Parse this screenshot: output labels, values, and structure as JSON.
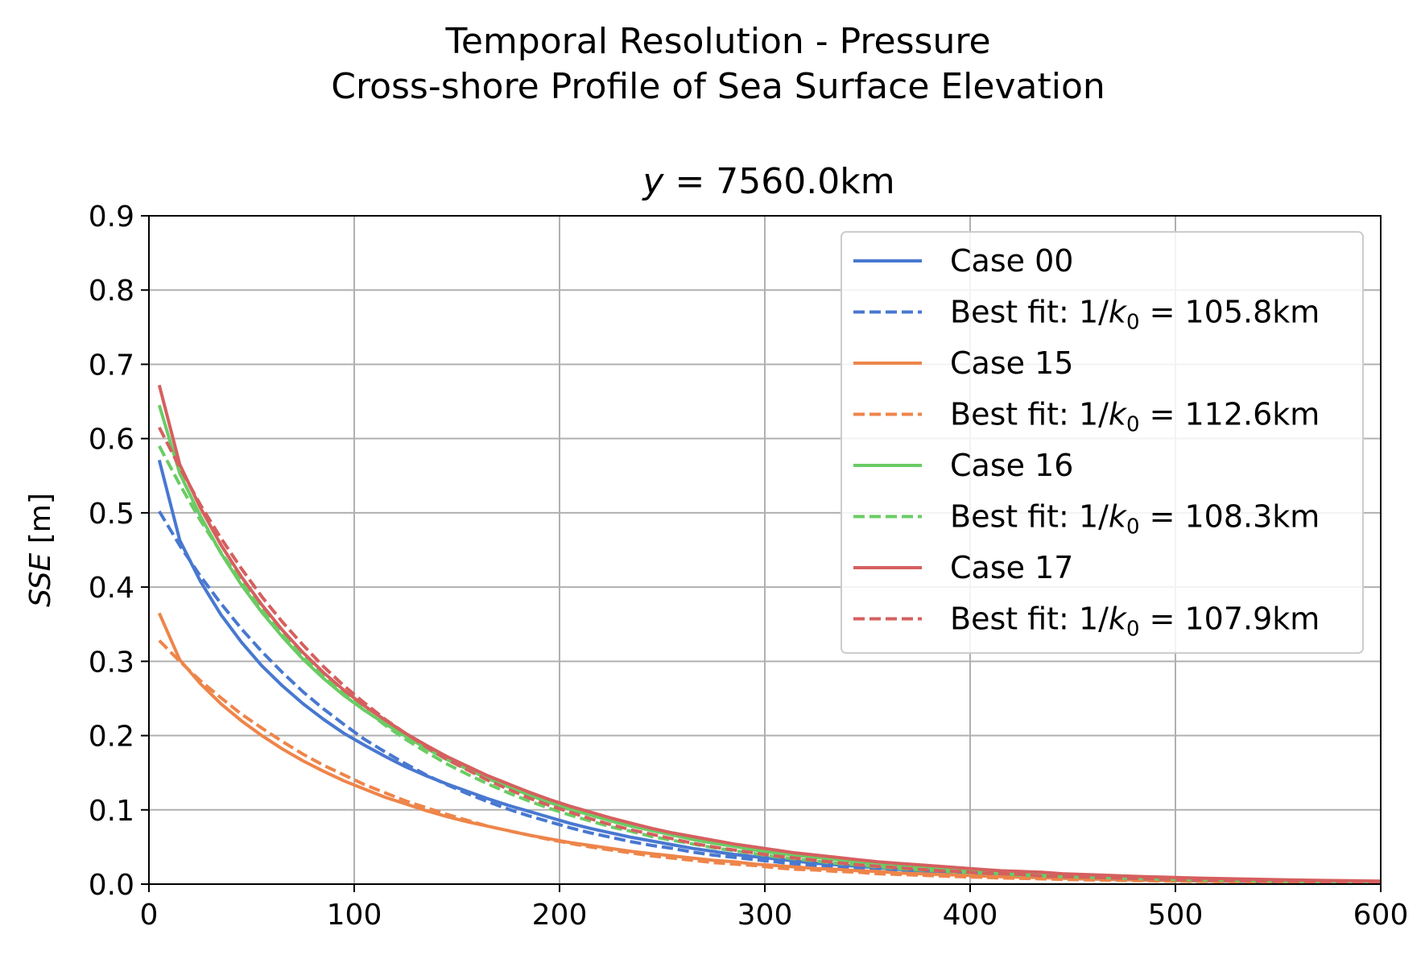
{
  "figure": {
    "suptitle_line1": "Temporal Resolution - Pressure",
    "suptitle_line2": "Cross-shore Profile of Sea Surface Elevation"
  },
  "chart_data": {
    "type": "line",
    "title": "y = 7560.0km",
    "title_parts": {
      "var": "y",
      "rest": " = 7560.0km"
    },
    "ylabel": "SSE [m]",
    "ylabel_parts": {
      "var": "SSE",
      "rest": " [m]"
    },
    "xlabel": "",
    "xlim": [
      0,
      600
    ],
    "ylim": [
      0,
      0.9
    ],
    "xticks": [
      "0",
      "100",
      "200",
      "300",
      "400",
      "500",
      "600"
    ],
    "yticks": [
      "0.0",
      "0.1",
      "0.2",
      "0.3",
      "0.4",
      "0.5",
      "0.6",
      "0.7",
      "0.8",
      "0.9"
    ],
    "grid": true,
    "legend_position": "top-right",
    "x": [
      5,
      15,
      25,
      35,
      45,
      55,
      65,
      75,
      85,
      95,
      105,
      115,
      125,
      135,
      145,
      155,
      165,
      175,
      185,
      195,
      205,
      215,
      225,
      235,
      245,
      255,
      265,
      275,
      285,
      295,
      305,
      315,
      325,
      335,
      345,
      355,
      365,
      375,
      385,
      395,
      405,
      415,
      425,
      435,
      445,
      455,
      465,
      475,
      485,
      495,
      505,
      515,
      525,
      535,
      545,
      555,
      565,
      575,
      585,
      595,
      600
    ],
    "series": [
      {
        "name": "Case 00",
        "style": "solid",
        "color": "#4878d0",
        "values": [
          0.571,
          0.463,
          0.408,
          0.363,
          0.326,
          0.294,
          0.267,
          0.243,
          0.222,
          0.203,
          0.187,
          0.172,
          0.158,
          0.146,
          0.135,
          0.125,
          0.115,
          0.106,
          0.098,
          0.09,
          0.082,
          0.075,
          0.069,
          0.063,
          0.058,
          0.053,
          0.048,
          0.044,
          0.04,
          0.037,
          0.034,
          0.031,
          0.028,
          0.026,
          0.024,
          0.022,
          0.02,
          0.018,
          0.017,
          0.015,
          0.014,
          0.013,
          0.012,
          0.011,
          0.01,
          0.009,
          0.008,
          0.0075,
          0.007,
          0.0065,
          0.006,
          0.0055,
          0.005,
          0.0046,
          0.0043,
          0.004,
          0.0037,
          0.0035,
          0.0033,
          0.0031,
          0.003
        ]
      },
      {
        "name": "Best fit: 1/k0 = 105.8km",
        "label_parts": {
          "pre": "Best fit: 1/",
          "k": "k",
          "sub": "0",
          "post": " = 105.8km"
        },
        "style": "dashed",
        "color": "#4878d0",
        "values": [
          0.502,
          0.456,
          0.415,
          0.378,
          0.344,
          0.313,
          0.285,
          0.259,
          0.236,
          0.215,
          0.195,
          0.178,
          0.162,
          0.147,
          0.134,
          0.122,
          0.111,
          0.101,
          0.092,
          0.084,
          0.076,
          0.069,
          0.063,
          0.057,
          0.052,
          0.048,
          0.043,
          0.039,
          0.036,
          0.033,
          0.03,
          0.027,
          0.025,
          0.022,
          0.02,
          0.019,
          0.017,
          0.015,
          0.014,
          0.013,
          0.012,
          0.011,
          0.01,
          0.009,
          0.008,
          0.007,
          0.0066,
          0.006,
          0.0055,
          0.005,
          0.0045,
          0.0041,
          0.0038,
          0.0034,
          0.0031,
          0.0028,
          0.0026,
          0.0024,
          0.0021,
          0.002,
          0.0019
        ]
      },
      {
        "name": "Case 15",
        "style": "solid",
        "color": "#ee854a",
        "values": [
          0.365,
          0.302,
          0.27,
          0.243,
          0.22,
          0.2,
          0.182,
          0.166,
          0.152,
          0.139,
          0.128,
          0.117,
          0.108,
          0.099,
          0.091,
          0.084,
          0.078,
          0.072,
          0.066,
          0.061,
          0.056,
          0.052,
          0.048,
          0.044,
          0.041,
          0.038,
          0.035,
          0.032,
          0.03,
          0.027,
          0.025,
          0.023,
          0.021,
          0.02,
          0.018,
          0.017,
          0.015,
          0.014,
          0.013,
          0.012,
          0.011,
          0.01,
          0.0093,
          0.0086,
          0.008,
          0.0074,
          0.0068,
          0.0063,
          0.0058,
          0.0054,
          0.005,
          0.0046,
          0.0043,
          0.004,
          0.0037,
          0.0034,
          0.0031,
          0.0029,
          0.0027,
          0.0025,
          0.0024
        ]
      },
      {
        "name": "Best fit: 1/k0 = 112.6km",
        "label_parts": {
          "pre": "Best fit: 1/",
          "k": "k",
          "sub": "0",
          "post": " = 112.6km"
        },
        "style": "dashed",
        "color": "#ee854a",
        "values": [
          0.328,
          0.3,
          0.274,
          0.251,
          0.229,
          0.21,
          0.192,
          0.175,
          0.16,
          0.147,
          0.134,
          0.123,
          0.112,
          0.103,
          0.094,
          0.086,
          0.078,
          0.072,
          0.066,
          0.06,
          0.055,
          0.05,
          0.046,
          0.042,
          0.038,
          0.035,
          0.032,
          0.029,
          0.027,
          0.025,
          0.022,
          0.02,
          0.019,
          0.017,
          0.016,
          0.014,
          0.013,
          0.012,
          0.011,
          0.01,
          0.0092,
          0.0084,
          0.0077,
          0.007,
          0.0064,
          0.0059,
          0.0054,
          0.0049,
          0.0045,
          0.0041,
          0.0038,
          0.0035,
          0.0032,
          0.0029,
          0.0026,
          0.0024,
          0.0022,
          0.002,
          0.0018,
          0.0017,
          0.0016
        ]
      },
      {
        "name": "Case 16",
        "style": "solid",
        "color": "#6acc64",
        "values": [
          0.645,
          0.553,
          0.496,
          0.446,
          0.403,
          0.366,
          0.333,
          0.303,
          0.277,
          0.254,
          0.234,
          0.216,
          0.199,
          0.183,
          0.168,
          0.155,
          0.142,
          0.131,
          0.12,
          0.11,
          0.101,
          0.093,
          0.085,
          0.078,
          0.072,
          0.066,
          0.06,
          0.055,
          0.051,
          0.046,
          0.042,
          0.039,
          0.036,
          0.033,
          0.03,
          0.027,
          0.025,
          0.023,
          0.021,
          0.019,
          0.018,
          0.016,
          0.015,
          0.014,
          0.012,
          0.011,
          0.01,
          0.0095,
          0.0087,
          0.008,
          0.0073,
          0.0067,
          0.0061,
          0.0056,
          0.0051,
          0.0047,
          0.0043,
          0.004,
          0.0036,
          0.0033,
          0.0032
        ]
      },
      {
        "name": "Best fit: 1/k0 = 108.3km",
        "label_parts": {
          "pre": "Best fit: 1/",
          "k": "k",
          "sub": "0",
          "post": " = 108.3km"
        },
        "style": "dashed",
        "color": "#6acc64",
        "values": [
          0.59,
          0.538,
          0.49,
          0.447,
          0.408,
          0.372,
          0.339,
          0.309,
          0.282,
          0.257,
          0.235,
          0.214,
          0.195,
          0.178,
          0.162,
          0.148,
          0.135,
          0.123,
          0.112,
          0.102,
          0.093,
          0.085,
          0.077,
          0.071,
          0.064,
          0.059,
          0.054,
          0.049,
          0.045,
          0.041,
          0.037,
          0.034,
          0.031,
          0.028,
          0.026,
          0.023,
          0.021,
          0.019,
          0.018,
          0.016,
          0.015,
          0.014,
          0.012,
          0.011,
          0.01,
          0.0094,
          0.0086,
          0.0078,
          0.0071,
          0.0065,
          0.0059,
          0.0054,
          0.0049,
          0.0045,
          0.0041,
          0.0037,
          0.0034,
          0.0031,
          0.0028,
          0.0026,
          0.0025
        ]
      },
      {
        "name": "Case 17",
        "style": "solid",
        "color": "#d65f5f",
        "values": [
          0.672,
          0.565,
          0.507,
          0.457,
          0.414,
          0.376,
          0.342,
          0.312,
          0.285,
          0.261,
          0.24,
          0.221,
          0.203,
          0.187,
          0.172,
          0.159,
          0.146,
          0.135,
          0.124,
          0.114,
          0.105,
          0.097,
          0.089,
          0.082,
          0.075,
          0.069,
          0.064,
          0.059,
          0.054,
          0.05,
          0.046,
          0.042,
          0.039,
          0.036,
          0.033,
          0.03,
          0.028,
          0.026,
          0.024,
          0.022,
          0.02,
          0.018,
          0.017,
          0.016,
          0.014,
          0.013,
          0.012,
          0.011,
          0.01,
          0.0093,
          0.0086,
          0.0079,
          0.0073,
          0.0067,
          0.0062,
          0.0057,
          0.0053,
          0.0049,
          0.0045,
          0.0042,
          0.004
        ]
      },
      {
        "name": "Best fit: 1/k0 = 107.9km",
        "label_parts": {
          "pre": "Best fit: 1/",
          "k": "k",
          "sub": "0",
          "post": " = 107.9km"
        },
        "style": "dashed",
        "color": "#d65f5f",
        "values": [
          0.615,
          0.561,
          0.511,
          0.466,
          0.425,
          0.387,
          0.353,
          0.322,
          0.293,
          0.267,
          0.244,
          0.222,
          0.203,
          0.185,
          0.168,
          0.154,
          0.14,
          0.128,
          0.116,
          0.106,
          0.097,
          0.088,
          0.08,
          0.073,
          0.067,
          0.061,
          0.055,
          0.05,
          0.046,
          0.042,
          0.038,
          0.035,
          0.032,
          0.029,
          0.026,
          0.024,
          0.022,
          0.02,
          0.018,
          0.017,
          0.015,
          0.014,
          0.013,
          0.011,
          0.01,
          0.0095,
          0.0087,
          0.0079,
          0.0072,
          0.0066,
          0.006,
          0.0055,
          0.005,
          0.0045,
          0.0041,
          0.0038,
          0.0034,
          0.0031,
          0.0029,
          0.0026,
          0.0025
        ]
      }
    ]
  }
}
